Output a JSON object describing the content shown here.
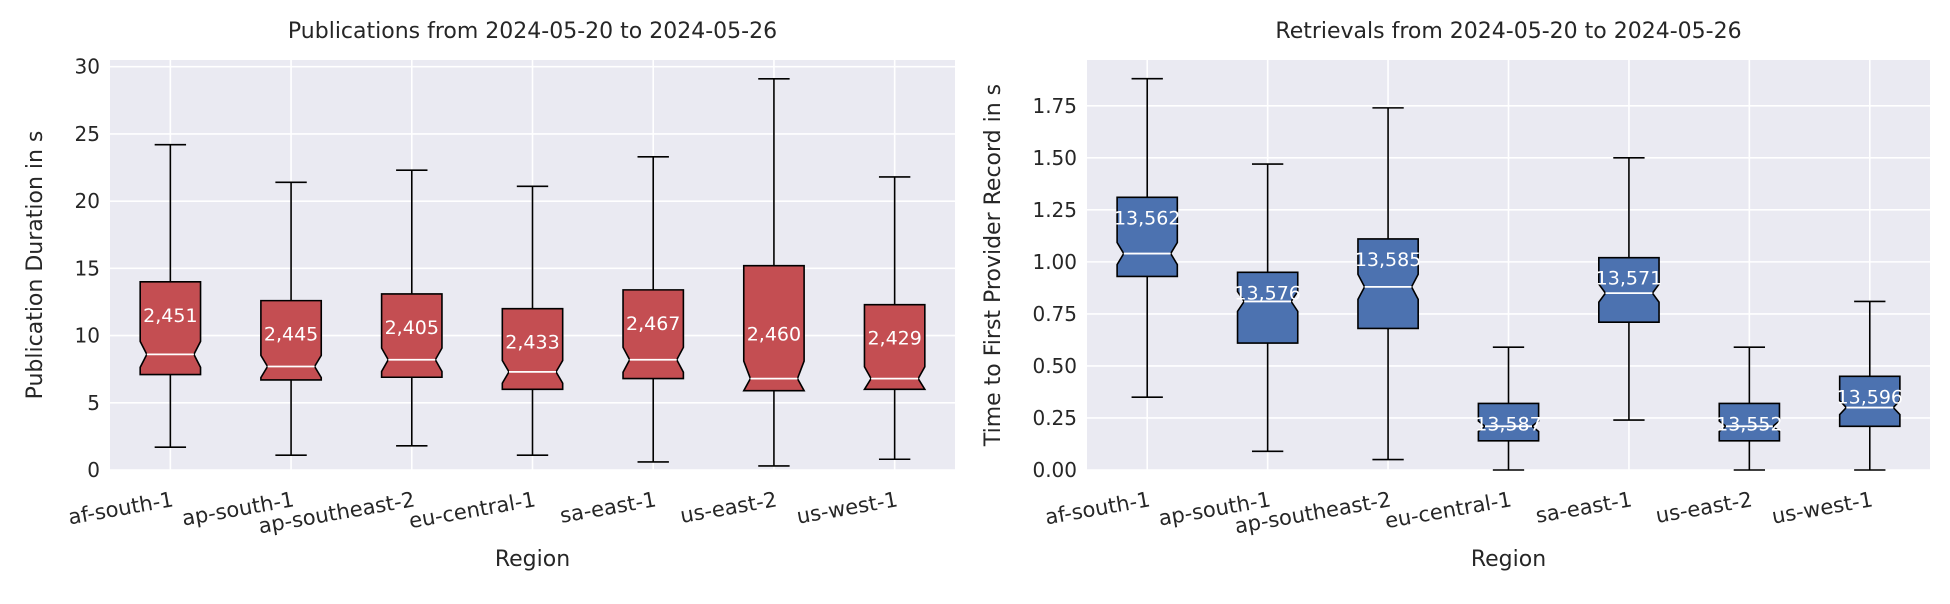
{
  "figure": {
    "background": "#ffffff",
    "axes_background": "#eaeaf2",
    "grid_color": "#ffffff",
    "text_color": "#262626"
  },
  "chart_data": [
    {
      "type": "box",
      "title": "Publications from 2024-05-20 to 2024-05-26",
      "xlabel": "Region",
      "ylabel": "Publication Duration in s",
      "ylim": [
        0,
        30.5
      ],
      "yticks": [
        0,
        5,
        10,
        15,
        20,
        25,
        30
      ],
      "ytick_decimals": 0,
      "grid": true,
      "notched": true,
      "box_color": "#c44e52",
      "categories": [
        "af-south-1",
        "ap-south-1",
        "ap-southeast-2",
        "eu-central-1",
        "sa-east-1",
        "us-east-2",
        "us-west-1"
      ],
      "boxes": [
        {
          "whislo": 1.7,
          "q1": 7.1,
          "med": 8.6,
          "q3": 14.0,
          "whishi": 24.2,
          "count_label": "2,451"
        },
        {
          "whislo": 1.1,
          "q1": 6.7,
          "med": 7.7,
          "q3": 12.6,
          "whishi": 21.4,
          "count_label": "2,445"
        },
        {
          "whislo": 1.8,
          "q1": 6.9,
          "med": 8.2,
          "q3": 13.1,
          "whishi": 22.3,
          "count_label": "2,405"
        },
        {
          "whislo": 1.1,
          "q1": 6.0,
          "med": 7.3,
          "q3": 12.0,
          "whishi": 21.1,
          "count_label": "2,433"
        },
        {
          "whislo": 0.6,
          "q1": 6.8,
          "med": 8.2,
          "q3": 13.4,
          "whishi": 23.3,
          "count_label": "2,467"
        },
        {
          "whislo": 0.3,
          "q1": 5.9,
          "med": 6.8,
          "q3": 15.2,
          "whishi": 29.1,
          "count_label": "2,460"
        },
        {
          "whislo": 0.8,
          "q1": 6.0,
          "med": 6.8,
          "q3": 12.3,
          "whishi": 21.8,
          "count_label": "2,429"
        }
      ]
    },
    {
      "type": "box",
      "title": "Retrievals from 2024-05-20 to 2024-05-26",
      "xlabel": "Region",
      "ylabel": "Time to First Provider Record in s",
      "ylim": [
        0,
        1.97
      ],
      "yticks": [
        0,
        0.25,
        0.5,
        0.75,
        1.0,
        1.25,
        1.5,
        1.75
      ],
      "ytick_decimals": 2,
      "grid": true,
      "notched": true,
      "box_color": "#4c72b0",
      "categories": [
        "af-south-1",
        "ap-south-1",
        "ap-southeast-2",
        "eu-central-1",
        "sa-east-1",
        "us-east-2",
        "us-west-1"
      ],
      "boxes": [
        {
          "whislo": 0.35,
          "q1": 0.93,
          "med": 1.04,
          "q3": 1.31,
          "whishi": 1.88,
          "count_label": "13,562"
        },
        {
          "whislo": 0.09,
          "q1": 0.61,
          "med": 0.81,
          "q3": 0.95,
          "whishi": 1.47,
          "count_label": "13,576"
        },
        {
          "whislo": 0.05,
          "q1": 0.68,
          "med": 0.88,
          "q3": 1.11,
          "whishi": 1.74,
          "count_label": "13,585"
        },
        {
          "whislo": 0.0,
          "q1": 0.14,
          "med": 0.21,
          "q3": 0.32,
          "whishi": 0.59,
          "count_label": "13,587"
        },
        {
          "whislo": 0.24,
          "q1": 0.71,
          "med": 0.85,
          "q3": 1.02,
          "whishi": 1.5,
          "count_label": "13,571"
        },
        {
          "whislo": 0.0,
          "q1": 0.14,
          "med": 0.21,
          "q3": 0.32,
          "whishi": 0.59,
          "count_label": "13,552"
        },
        {
          "whislo": 0.0,
          "q1": 0.21,
          "med": 0.3,
          "q3": 0.45,
          "whishi": 0.81,
          "count_label": "13,596"
        }
      ]
    }
  ]
}
